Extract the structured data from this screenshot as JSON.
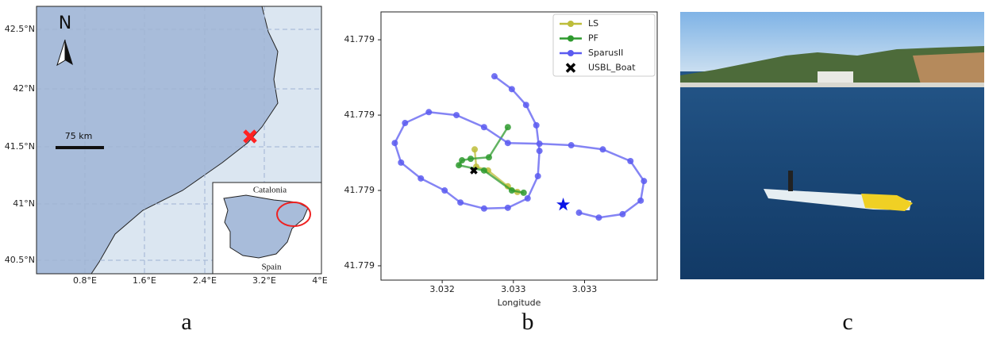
{
  "chart_data": {
    "type": "line",
    "x_label": "Longitude",
    "xlim": [
      3.03177,
      3.03371
    ],
    "ylim": [
      41.778562,
      41.779274
    ],
    "xticks": [
      {
        "value": 3.0322,
        "label": "3.032"
      },
      {
        "value": 3.0327,
        "label": "3.033"
      },
      {
        "value": 3.0332,
        "label": "3.033"
      }
    ],
    "yticks": [
      {
        "value": 41.7786,
        "label": "41.779"
      },
      {
        "value": 41.7788,
        "label": "41.779"
      },
      {
        "value": 41.779,
        "label": "41.779"
      },
      {
        "value": 41.7792,
        "label": "41.779"
      }
    ],
    "legend": "upper right",
    "series": [
      {
        "name": "LS",
        "color": "#bdbd3a",
        "marker": "o",
        "x": [
          3.032428,
          3.032439,
          3.032522,
          3.032661,
          3.032728
        ],
        "values": [
          41.778909,
          41.778863,
          41.778853,
          41.778811,
          41.778796
        ]
      },
      {
        "name": "PF",
        "color": "#2e9a2e",
        "marker": "o",
        "x": [
          3.032661,
          3.032528,
          3.0324,
          3.032339,
          3.032317,
          3.032494,
          3.032689,
          3.032772
        ],
        "values": [
          41.778968,
          41.778888,
          41.778884,
          41.77888,
          41.778867,
          41.778853,
          41.7788,
          41.778794
        ]
      },
      {
        "name": "SparusII",
        "color": "#5b5bf0",
        "marker": "o",
        "x": [
          3.032567,
          3.032689,
          3.032789,
          3.032861,
          3.032883,
          3.032872,
          3.0328,
          3.032661,
          3.032494,
          3.032328,
          3.032217,
          3.03205,
          3.031911,
          3.031867,
          3.031939,
          3.032106,
          3.0323,
          3.032494,
          3.032661,
          3.032883,
          3.033106,
          3.033328,
          3.033522,
          3.033617,
          3.033594,
          3.033467,
          3.0333,
          3.033161
        ],
        "values": [
          41.779103,
          41.779069,
          41.779027,
          41.778973,
          41.778905,
          41.778838,
          41.778779,
          41.778754,
          41.778752,
          41.778768,
          41.7788,
          41.778832,
          41.778874,
          41.778926,
          41.778979,
          41.779008,
          41.779,
          41.778968,
          41.778926,
          41.778924,
          41.77892,
          41.778909,
          41.778878,
          41.778825,
          41.778773,
          41.778737,
          41.778728,
          41.778741
        ]
      },
      {
        "name": "USBL_Boat",
        "color": "#000000",
        "marker": "X",
        "x": [
          3.032422
        ],
        "values": [
          41.778853
        ]
      }
    ],
    "end_point": {
      "x": 3.03305,
      "y": 41.778762,
      "color": "#0a14e6"
    }
  },
  "map": {
    "north": "N",
    "scale": "75 km",
    "inset_labels": [
      "Catalonia",
      "Spain"
    ],
    "lat_labels": [
      "42.5°N",
      "42°N",
      "41.5°N",
      "41°N",
      "40.5°N"
    ],
    "lon_labels": [
      "0.8°E",
      "1.6°E",
      "2.4°E",
      "3.2°E",
      "4°E"
    ]
  },
  "captions": [
    "a",
    "b",
    "c"
  ]
}
